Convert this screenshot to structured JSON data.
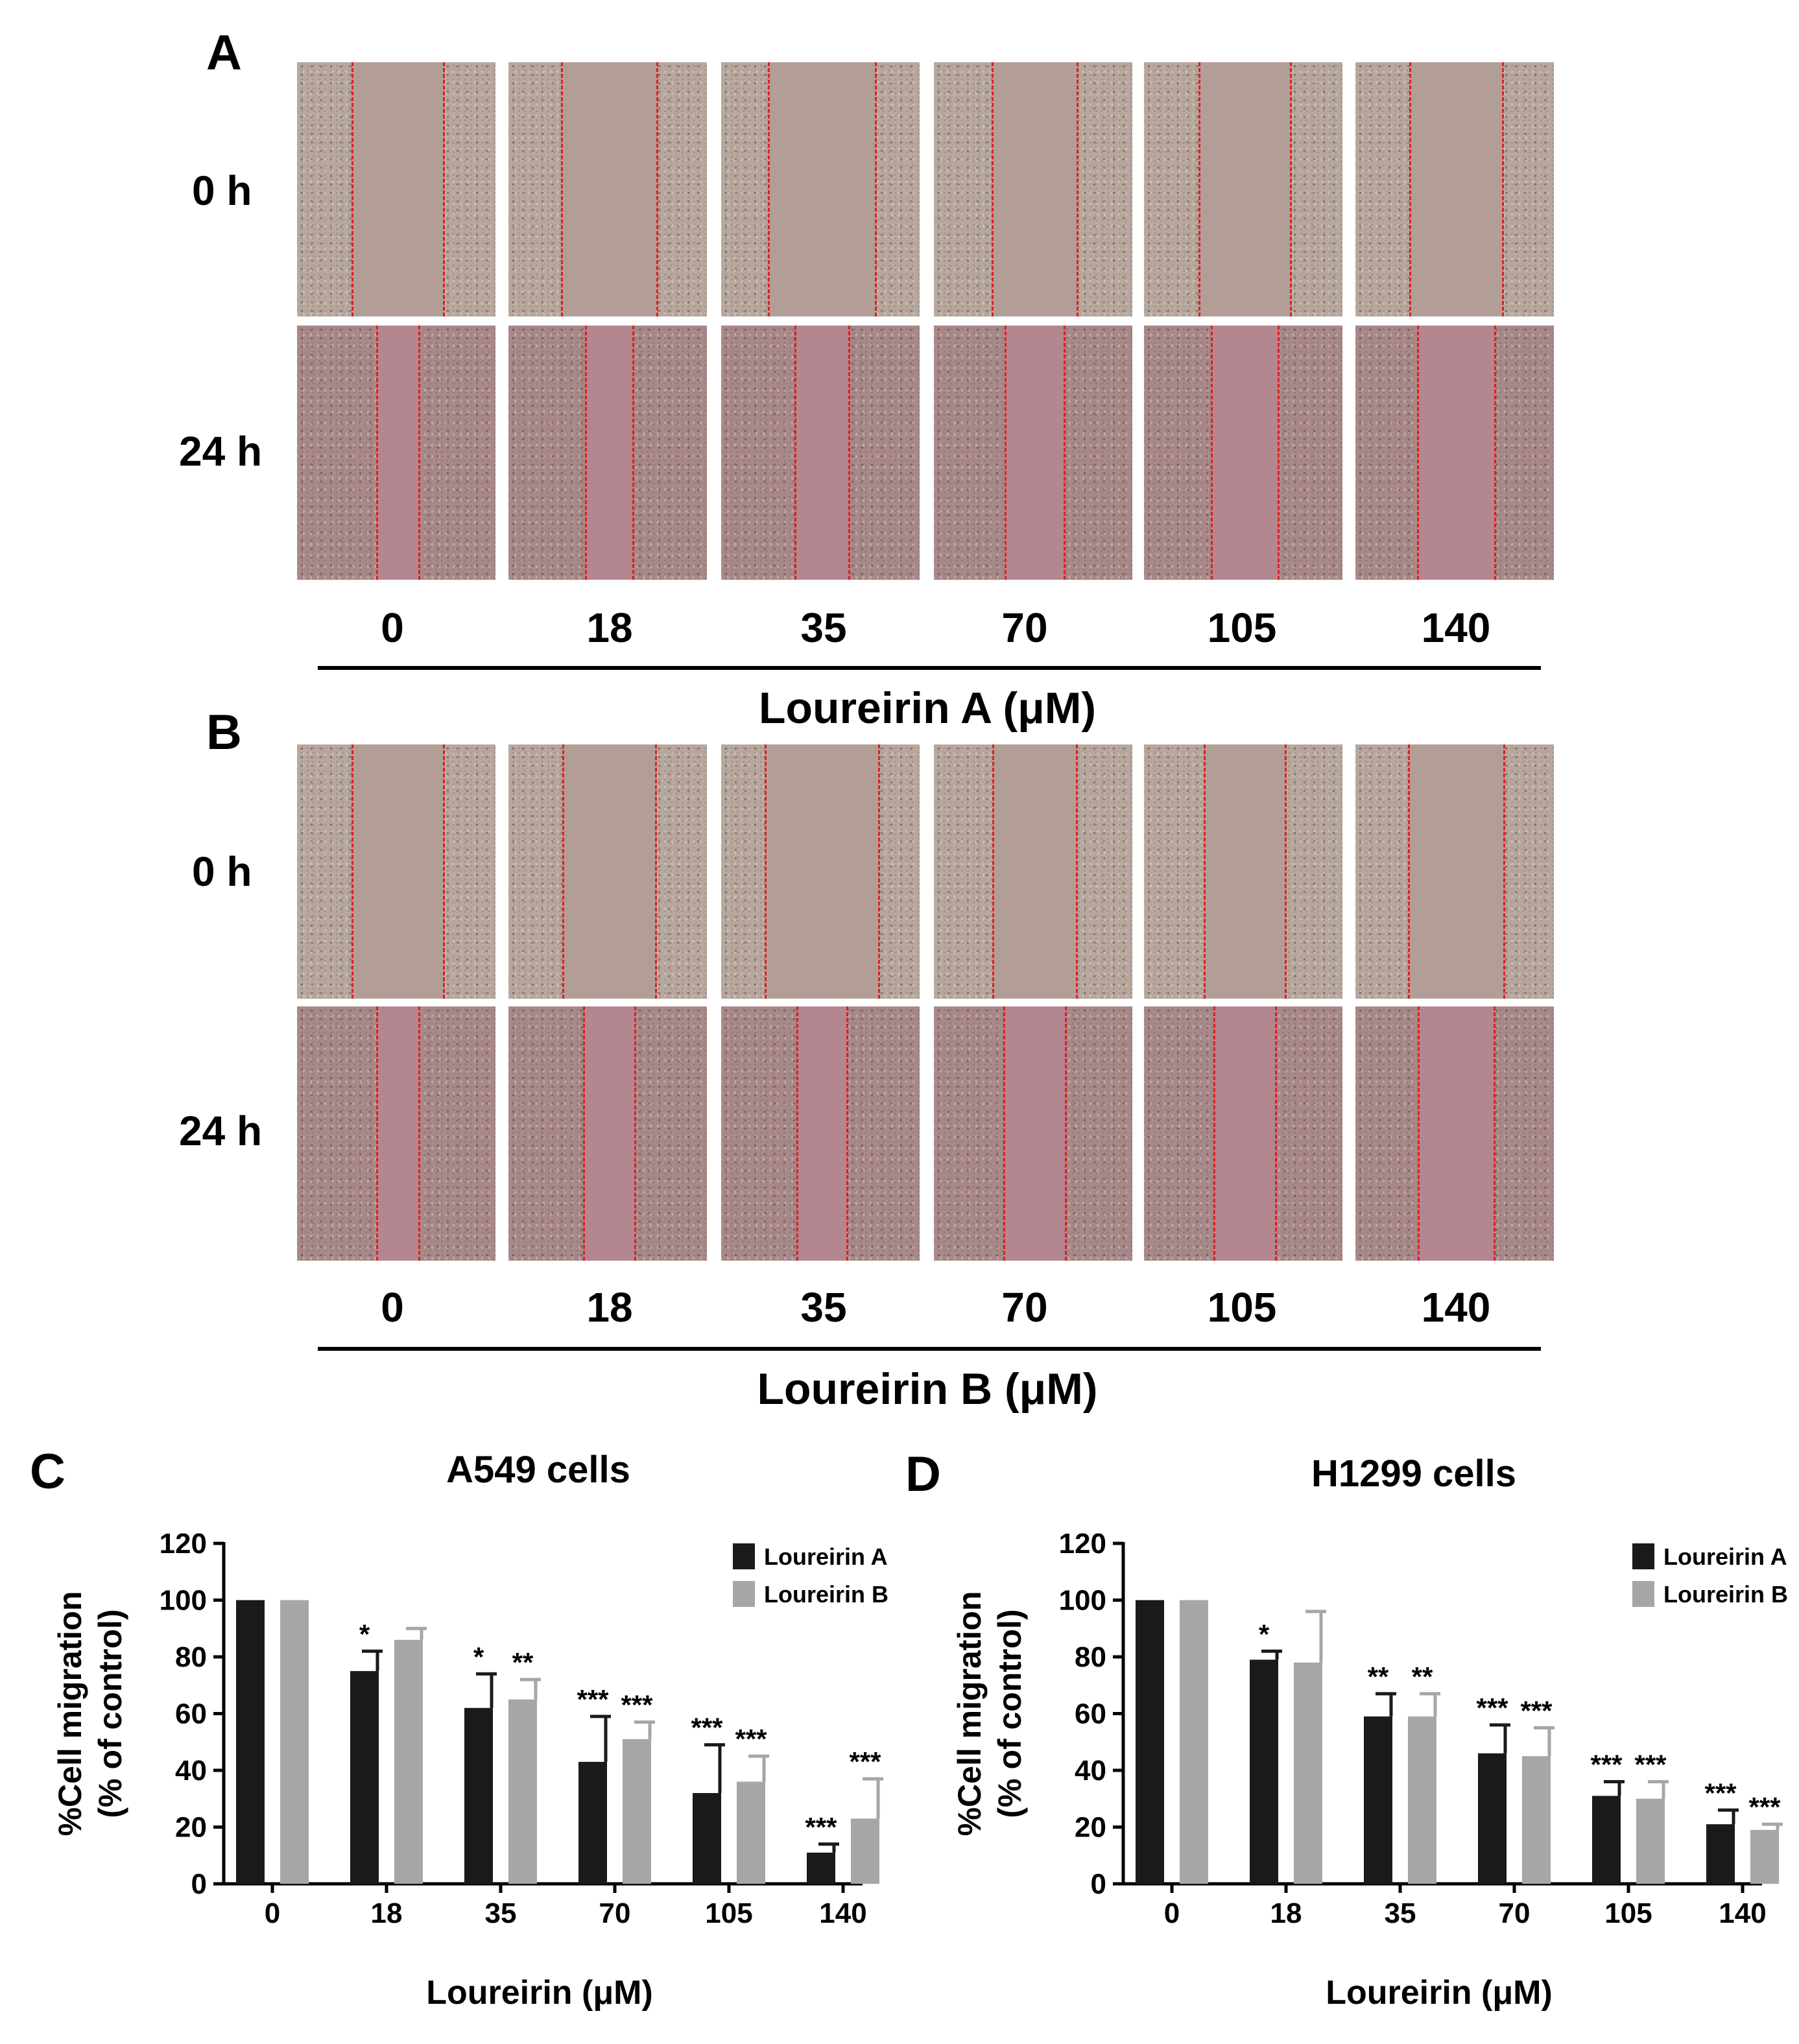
{
  "panels": {
    "a": {
      "letter": "A",
      "row_labels": [
        "0 h",
        "24 h"
      ],
      "doses": [
        "0",
        "18",
        "35",
        "70",
        "105",
        "140"
      ],
      "compound_label": "Loureirin A (μM)",
      "gap_0h": [
        0.45,
        0.47,
        0.53,
        0.42,
        0.45,
        0.46
      ],
      "gap_24h": [
        0.2,
        0.23,
        0.26,
        0.29,
        0.33,
        0.38
      ]
    },
    "b": {
      "letter": "B",
      "row_labels": [
        "0 h",
        "24 h"
      ],
      "doses": [
        "0",
        "18",
        "35",
        "70",
        "105",
        "140"
      ],
      "compound_label": "Loureirin B (μM)",
      "gap_0h": [
        0.45,
        0.46,
        0.56,
        0.41,
        0.4,
        0.47
      ],
      "gap_24h": [
        0.2,
        0.25,
        0.24,
        0.3,
        0.3,
        0.37
      ]
    }
  },
  "chart_data": [
    {
      "panel": "C",
      "type": "bar",
      "title": "A549 cells",
      "xlabel": "Loureirin (μM)",
      "ylabel_lines": [
        "%Cell migration",
        "(% of control)"
      ],
      "ylim": [
        0,
        120
      ],
      "yticks": [
        "0",
        "20",
        "40",
        "60",
        "80",
        "100",
        "120"
      ],
      "categories": [
        "0",
        "18",
        "35",
        "70",
        "105",
        "140"
      ],
      "series": [
        {
          "name": "Loureirin A",
          "color": "#1a1a1a",
          "values": [
            100,
            75,
            62,
            43,
            32,
            11
          ],
          "errors": [
            0,
            7,
            12,
            16,
            17,
            3
          ],
          "sig": [
            "",
            "*",
            "*",
            "***",
            "***",
            "***"
          ]
        },
        {
          "name": "Loureirin B",
          "color": "#a6a6a8",
          "values": [
            100,
            86,
            65,
            51,
            36,
            23
          ],
          "errors": [
            0,
            4,
            7,
            6,
            9,
            14
          ],
          "sig": [
            "",
            "",
            "**",
            "***",
            "***",
            "***"
          ]
        }
      ],
      "legend": "top-right"
    },
    {
      "panel": "D",
      "type": "bar",
      "title": "H1299 cells",
      "xlabel": "Loureirin (μM)",
      "ylabel_lines": [
        "%Cell migration",
        "(% of control)"
      ],
      "ylim": [
        0,
        120
      ],
      "yticks": [
        "0",
        "20",
        "40",
        "60",
        "80",
        "100",
        "120"
      ],
      "categories": [
        "0",
        "18",
        "35",
        "70",
        "105",
        "140"
      ],
      "series": [
        {
          "name": "Loureirin A",
          "color": "#1a1a1a",
          "values": [
            100,
            79,
            59,
            46,
            31,
            21
          ],
          "errors": [
            0,
            3,
            8,
            10,
            5,
            5
          ],
          "sig": [
            "",
            "*",
            "**",
            "***",
            "***",
            "***"
          ]
        },
        {
          "name": "Loureirin B",
          "color": "#a6a6a8",
          "values": [
            100,
            78,
            59,
            45,
            30,
            19
          ],
          "errors": [
            0,
            18,
            8,
            10,
            6,
            2
          ],
          "sig": [
            "",
            "",
            "**",
            "***",
            "***",
            "***"
          ]
        }
      ],
      "legend": "top-right"
    }
  ]
}
